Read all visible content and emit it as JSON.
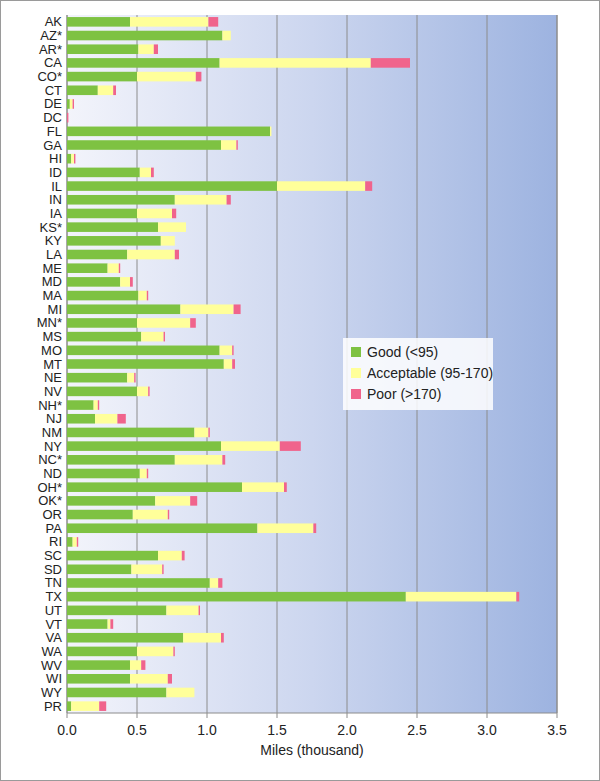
{
  "chart_data": {
    "type": "bar",
    "orientation": "horizontal",
    "stacked": true,
    "grid": true,
    "legend": "right",
    "xlabel": "Miles (thousand)",
    "xlim": [
      0,
      3.5
    ],
    "xticks": [
      {
        "value": 0,
        "label": "0.0"
      },
      0.5,
      {
        "value": 1,
        "label": "1.0"
      },
      1.5,
      {
        "value": 2,
        "label": "2.0"
      },
      2.5,
      {
        "value": 3,
        "label": "3.0"
      },
      3.5
    ],
    "categories": [
      "AK",
      "AZ*",
      "AR*",
      "CA",
      "CO*",
      "CT",
      "DE",
      "DC",
      "FL",
      "GA",
      "HI",
      "ID",
      "IL",
      "IN",
      "IA",
      "KS*",
      "KY",
      "LA",
      "ME",
      "MD",
      "MA",
      "MI",
      "MN*",
      "MS",
      "MO",
      "MT",
      "NE",
      "NV",
      "NH*",
      "NJ",
      "NM",
      "NY",
      "NC*",
      "ND",
      "OH*",
      "OK*",
      "OR",
      "PA",
      "RI",
      "SC",
      "SD",
      "TN",
      "TX",
      "UT",
      "VT",
      "VA",
      "WA",
      "WV",
      "WI",
      "WY",
      "PR"
    ],
    "series": [
      {
        "name": "Good (<95)",
        "color": "#7ec242",
        "values": [
          0.45,
          1.11,
          0.51,
          1.09,
          0.5,
          0.22,
          0.02,
          0,
          1.45,
          1.1,
          0.03,
          0.52,
          1.5,
          0.77,
          0.5,
          0.65,
          0.67,
          0.43,
          0.29,
          0.38,
          0.51,
          0.81,
          0.5,
          0.53,
          1.09,
          1.12,
          0.43,
          0.5,
          0.19,
          0.2,
          0.91,
          1.1,
          0.77,
          0.52,
          1.25,
          0.63,
          0.47,
          1.36,
          0.04,
          0.65,
          0.46,
          1.02,
          2.42,
          0.71,
          0.29,
          0.83,
          0.5,
          0.45,
          0.45,
          0.71,
          0.03
        ]
      },
      {
        "name": "Acceptable (95-170)",
        "color": "#ffff9a",
        "values": [
          0.56,
          0.06,
          0.11,
          1.08,
          0.42,
          0.11,
          0.02,
          0,
          0.01,
          0.11,
          0.02,
          0.08,
          0.63,
          0.37,
          0.25,
          0.2,
          0.1,
          0.34,
          0.08,
          0.07,
          0.06,
          0.38,
          0.38,
          0.16,
          0.09,
          0.06,
          0.05,
          0.08,
          0.03,
          0.16,
          0.1,
          0.42,
          0.34,
          0.05,
          0.3,
          0.25,
          0.25,
          0.4,
          0.03,
          0.17,
          0.22,
          0.06,
          0.79,
          0.23,
          0.02,
          0.27,
          0.26,
          0.08,
          0.27,
          0.2,
          0.2
        ]
      },
      {
        "name": "Poor (>170)",
        "color": "#f0648c",
        "values": [
          0.07,
          0,
          0.03,
          0.28,
          0.04,
          0.02,
          0.01,
          0.01,
          0,
          0.01,
          0.01,
          0.02,
          0.05,
          0.03,
          0.03,
          0,
          0,
          0.03,
          0.01,
          0.02,
          0.01,
          0.05,
          0.04,
          0.01,
          0.01,
          0.02,
          0.01,
          0.01,
          0.01,
          0.06,
          0.01,
          0.15,
          0.02,
          0.01,
          0.02,
          0.05,
          0.01,
          0.02,
          0.01,
          0.02,
          0.01,
          0.03,
          0.02,
          0.01,
          0.02,
          0.02,
          0.01,
          0.03,
          0.03,
          0,
          0.05
        ]
      }
    ]
  }
}
